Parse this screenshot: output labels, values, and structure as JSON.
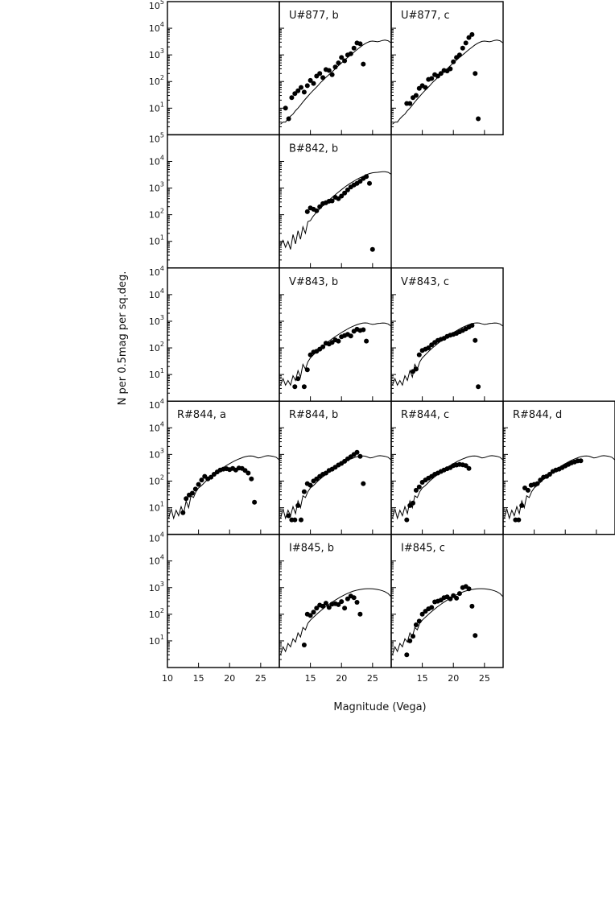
{
  "chart_data": {
    "type": "scatter",
    "ylabel": "N per 0.5mag per sq.deg.",
    "xlabel": "Magnitude (Vega)",
    "xlim": [
      10,
      28
    ],
    "ylim": [
      1,
      100000
    ],
    "yscale": "log",
    "x_ticks": [
      10,
      15,
      20,
      25
    ],
    "model_line": {
      "x": [
        10.2,
        10.6,
        11.0,
        11.4,
        11.8,
        12.2,
        12.6,
        13.0,
        13.4,
        13.8,
        14.2,
        14.6,
        15.0,
        15.4,
        15.8,
        16.2,
        16.6,
        17.0,
        17.4,
        17.8,
        18.2,
        18.6,
        19.0,
        19.4,
        19.8,
        20.2,
        20.6,
        21.0,
        21.4,
        21.8,
        22.2,
        22.6,
        23.0,
        23.4,
        23.8,
        24.2,
        24.6,
        25.0,
        25.4,
        25.8,
        26.2,
        26.6,
        27.0,
        27.5,
        28.0
      ],
      "U": [
        2.5,
        3,
        3,
        4,
        5,
        6,
        8,
        10,
        13,
        17,
        22,
        28,
        36,
        45,
        56,
        70,
        90,
        110,
        135,
        165,
        200,
        245,
        300,
        370,
        450,
        550,
        670,
        800,
        960,
        1150,
        1380,
        1650,
        1950,
        2300,
        2650,
        2950,
        3200,
        3300,
        3200,
        3100,
        3250,
        3500,
        3600,
        3400,
        2800
      ],
      "B": [
        7,
        11,
        6,
        10,
        5,
        18,
        8,
        25,
        12,
        35,
        20,
        55,
        60,
        85,
        110,
        140,
        175,
        215,
        260,
        320,
        390,
        470,
        560,
        670,
        800,
        950,
        1120,
        1300,
        1500,
        1700,
        1950,
        2200,
        2450,
        2700,
        3000,
        3300,
        3550,
        3750,
        3850,
        3900,
        4000,
        4100,
        4100,
        3900,
        3300
      ],
      "V": [
        4,
        7,
        4,
        6,
        4,
        9,
        6,
        14,
        8,
        24,
        16,
        30,
        42,
        52,
        65,
        80,
        98,
        118,
        140,
        165,
        195,
        228,
        265,
        305,
        350,
        400,
        455,
        515,
        580,
        640,
        700,
        760,
        810,
        850,
        870,
        850,
        800,
        760,
        780,
        820,
        840,
        860,
        850,
        790,
        650
      ],
      "R": [
        4,
        9,
        4,
        8,
        5,
        11,
        6,
        18,
        10,
        28,
        24,
        40,
        55,
        65,
        80,
        100,
        120,
        145,
        170,
        200,
        235,
        275,
        320,
        370,
        425,
        480,
        540,
        600,
        660,
        720,
        780,
        830,
        870,
        880,
        860,
        800,
        740,
        760,
        820,
        880,
        900,
        880,
        850,
        780,
        620
      ],
      "I": [
        3,
        6,
        4,
        8,
        6,
        12,
        9,
        20,
        14,
        32,
        26,
        46,
        60,
        74,
        90,
        110,
        132,
        158,
        186,
        218,
        254,
        294,
        338,
        386,
        438,
        494,
        552,
        610,
        668,
        722,
        772,
        816,
        852,
        880,
        900,
        910,
        910,
        900,
        880,
        850,
        810,
        760,
        700,
        600,
        450
      ]
    },
    "panels": [
      {
        "id": "U-b",
        "label": "U#877, b",
        "row": 0,
        "col": 1,
        "band": "U",
        "x": [
          11.0,
          11.5,
          12.0,
          12.5,
          13.0,
          13.5,
          14.0,
          14.5,
          15.0,
          15.5,
          16.0,
          16.5,
          17.0,
          17.5,
          18.0,
          18.5,
          19.0,
          19.5,
          20.0,
          20.5,
          21.0,
          21.5,
          22.0,
          22.5,
          23.0,
          23.5
        ],
        "y": [
          10,
          4,
          25,
          35,
          45,
          60,
          40,
          70,
          110,
          85,
          160,
          200,
          140,
          280,
          260,
          180,
          350,
          500,
          800,
          600,
          1000,
          1100,
          1800,
          2800,
          2600,
          450
        ]
      },
      {
        "id": "U-c",
        "label": "U#877, c",
        "row": 0,
        "col": 2,
        "band": "U",
        "x": [
          12.5,
          13.0,
          13.5,
          14.0,
          14.5,
          15.0,
          15.5,
          16.0,
          16.5,
          17.0,
          17.5,
          18.0,
          18.5,
          19.0,
          19.5,
          20.0,
          20.5,
          21.0,
          21.5,
          22.0,
          22.5,
          23.0,
          23.5,
          24.0
        ],
        "y": [
          15,
          15,
          25,
          30,
          55,
          70,
          60,
          120,
          130,
          180,
          160,
          200,
          260,
          250,
          300,
          550,
          800,
          1000,
          1800,
          2800,
          4500,
          5800,
          200,
          4
        ]
      },
      {
        "id": "B-b",
        "label": "B#842, b",
        "row": 1,
        "col": 1,
        "band": "B",
        "x": [
          14.5,
          15.0,
          15.5,
          16.0,
          16.5,
          17.0,
          17.5,
          18.0,
          18.5,
          19.0,
          19.5,
          20.0,
          20.5,
          21.0,
          21.5,
          22.0,
          22.5,
          23.0,
          23.5,
          24.0,
          24.5,
          25.0
        ],
        "y": [
          130,
          180,
          160,
          140,
          200,
          260,
          280,
          320,
          330,
          450,
          400,
          500,
          650,
          850,
          1100,
          1300,
          1500,
          1800,
          2300,
          2700,
          1500,
          5
        ]
      },
      {
        "id": "V-b",
        "label": "V#843, b",
        "row": 2,
        "col": 1,
        "band": "V",
        "x": [
          12.5,
          13.0,
          14.0,
          14.5,
          15.0,
          15.5,
          16.0,
          16.5,
          17.0,
          17.5,
          18.0,
          18.5,
          19.0,
          19.5,
          20.0,
          20.5,
          21.0,
          21.5,
          22.0,
          22.5,
          23.0,
          23.5,
          24.0
        ],
        "y": [
          3.5,
          7,
          3.5,
          15,
          55,
          70,
          75,
          90,
          110,
          150,
          140,
          160,
          200,
          180,
          260,
          290,
          320,
          280,
          420,
          500,
          450,
          480,
          180
        ]
      },
      {
        "id": "V-c",
        "label": "V#843, c",
        "row": 2,
        "col": 2,
        "band": "V",
        "x": [
          13.5,
          14.0,
          14.5,
          15.0,
          15.5,
          16.0,
          16.5,
          17.0,
          17.5,
          18.0,
          18.5,
          19.0,
          19.5,
          20.0,
          20.5,
          21.0,
          21.5,
          22.0,
          22.5,
          23.0,
          23.5,
          24.0
        ],
        "y": [
          13,
          16,
          55,
          80,
          90,
          100,
          130,
          160,
          190,
          210,
          230,
          270,
          300,
          320,
          350,
          400,
          450,
          520,
          600,
          700,
          190,
          3.5
        ]
      },
      {
        "id": "R-a",
        "label": "R#844, a",
        "row": 3,
        "col": 0,
        "band": "R",
        "x": [
          12.5,
          13.0,
          13.5,
          14.0,
          14.5,
          15.0,
          15.5,
          16.0,
          16.5,
          17.0,
          17.5,
          18.0,
          18.5,
          19.0,
          19.5,
          20.0,
          20.5,
          21.0,
          21.5,
          22.0,
          22.5,
          23.0,
          23.5,
          24.0
        ],
        "y": [
          6.5,
          22,
          30,
          35,
          50,
          75,
          110,
          150,
          120,
          140,
          180,
          220,
          260,
          280,
          290,
          270,
          300,
          260,
          310,
          300,
          250,
          200,
          120,
          16
        ]
      },
      {
        "id": "R-b",
        "label": "R#844, b",
        "row": 3,
        "col": 1,
        "band": "R",
        "x": [
          11.5,
          12.0,
          12.5,
          13.0,
          13.5,
          14.0,
          14.5,
          15.0,
          15.5,
          16.0,
          16.5,
          17.0,
          17.5,
          18.0,
          18.5,
          19.0,
          19.5,
          20.0,
          20.5,
          21.0,
          21.5,
          22.0,
          22.5,
          23.0,
          23.5
        ],
        "y": [
          5,
          3.5,
          3.5,
          12,
          3.5,
          40,
          80,
          70,
          100,
          120,
          150,
          180,
          200,
          250,
          280,
          330,
          400,
          460,
          550,
          680,
          820,
          1000,
          1200,
          850,
          80
        ]
      },
      {
        "id": "R-c",
        "label": "R#844, c",
        "row": 3,
        "col": 2,
        "band": "R",
        "x": [
          12.5,
          13.0,
          13.5,
          14.0,
          14.5,
          15.0,
          15.5,
          16.0,
          16.5,
          17.0,
          17.5,
          18.0,
          18.5,
          19.0,
          19.5,
          20.0,
          20.5,
          21.0,
          21.5,
          22.0,
          22.5
        ],
        "y": [
          3.5,
          12,
          15,
          45,
          60,
          90,
          110,
          130,
          150,
          180,
          200,
          230,
          260,
          290,
          320,
          380,
          400,
          420,
          410,
          380,
          300
        ]
      },
      {
        "id": "R-d",
        "label": "R#844, d",
        "row": 3,
        "col": 3,
        "band": "R",
        "x": [
          12.0,
          12.5,
          13.0,
          13.5,
          14.0,
          14.5,
          15.0,
          15.5,
          16.0,
          16.5,
          17.0,
          17.5,
          18.0,
          18.5,
          19.0,
          19.5,
          20.0,
          20.5,
          21.0,
          21.5,
          22.0,
          22.5
        ],
        "y": [
          3.5,
          3.5,
          12,
          55,
          45,
          70,
          75,
          80,
          110,
          140,
          150,
          180,
          230,
          260,
          280,
          320,
          370,
          420,
          480,
          520,
          570,
          580
        ]
      },
      {
        "id": "I-b",
        "label": "I#845, b",
        "row": 4,
        "col": 1,
        "band": "I",
        "x": [
          14.0,
          14.5,
          15.0,
          15.5,
          16.0,
          16.5,
          17.0,
          17.5,
          18.0,
          18.5,
          19.0,
          19.5,
          20.0,
          20.5,
          21.0,
          21.5,
          22.0,
          22.5,
          23.0
        ],
        "y": [
          7,
          100,
          90,
          120,
          170,
          220,
          200,
          260,
          180,
          240,
          250,
          230,
          300,
          170,
          380,
          480,
          420,
          280,
          100
        ]
      },
      {
        "id": "I-c",
        "label": "I#845, c",
        "row": 4,
        "col": 2,
        "band": "I",
        "x": [
          12.5,
          13.0,
          13.5,
          14.0,
          14.5,
          15.0,
          15.5,
          16.0,
          16.5,
          17.0,
          17.5,
          18.0,
          18.5,
          19.0,
          19.5,
          20.0,
          20.5,
          21.0,
          21.5,
          22.0,
          22.5,
          23.0,
          23.5
        ],
        "y": [
          3,
          10,
          15,
          40,
          55,
          100,
          130,
          160,
          180,
          290,
          310,
          340,
          420,
          450,
          380,
          500,
          400,
          600,
          1000,
          1100,
          900,
          200,
          16
        ]
      }
    ]
  }
}
